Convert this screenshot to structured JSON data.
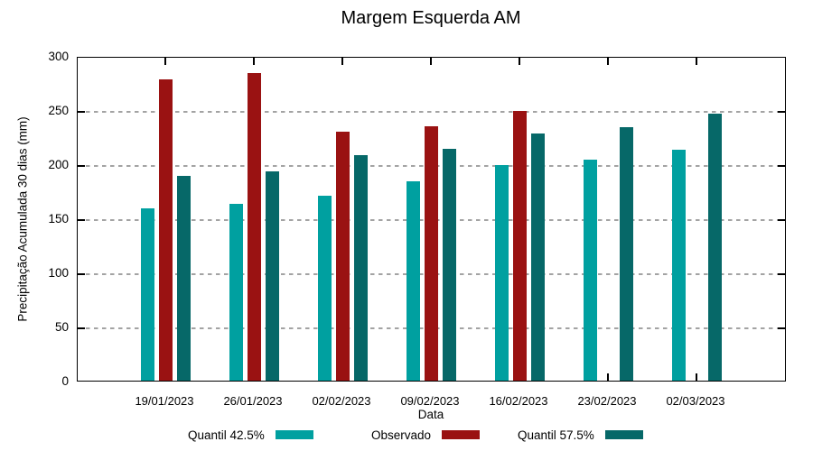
{
  "title": "Margem Esquerda AM",
  "x_axis_label": "Data",
  "y_axis_label": "Precipitação Acumulada 30 dias (mm)",
  "y_ticks": [
    0,
    50,
    100,
    150,
    200,
    250,
    300
  ],
  "legend": [
    {
      "label": "Quantil 42.5%",
      "color": "#00A0A0"
    },
    {
      "label": "Observado",
      "color": "#9A1212"
    },
    {
      "label": "Quantil 57.5%",
      "color": "#066868"
    }
  ],
  "chart_data": {
    "type": "bar",
    "title": "Margem Esquerda AM",
    "xlabel": "Data",
    "ylabel": "Precipitação Acumulada 30 dias (mm)",
    "ylim": [
      0,
      300
    ],
    "y_tick_step": 50,
    "grid": "horizontal-dashed-gray",
    "legend_position": "bottom",
    "categories": [
      "19/01/2023",
      "26/01/2023",
      "02/02/2023",
      "09/02/2023",
      "16/02/2023",
      "23/02/2023",
      "02/03/2023"
    ],
    "series": [
      {
        "name": "Quantil 42.5%",
        "color": "#00A0A0",
        "values": [
          159,
          163,
          171,
          184,
          199,
          204,
          213
        ]
      },
      {
        "name": "Observado",
        "color": "#9A1212",
        "values": [
          278,
          284,
          230,
          235,
          249,
          null,
          null
        ]
      },
      {
        "name": "Quantil 57.5%",
        "color": "#066868",
        "values": [
          189,
          193,
          208,
          214,
          228,
          234,
          247
        ]
      }
    ]
  }
}
